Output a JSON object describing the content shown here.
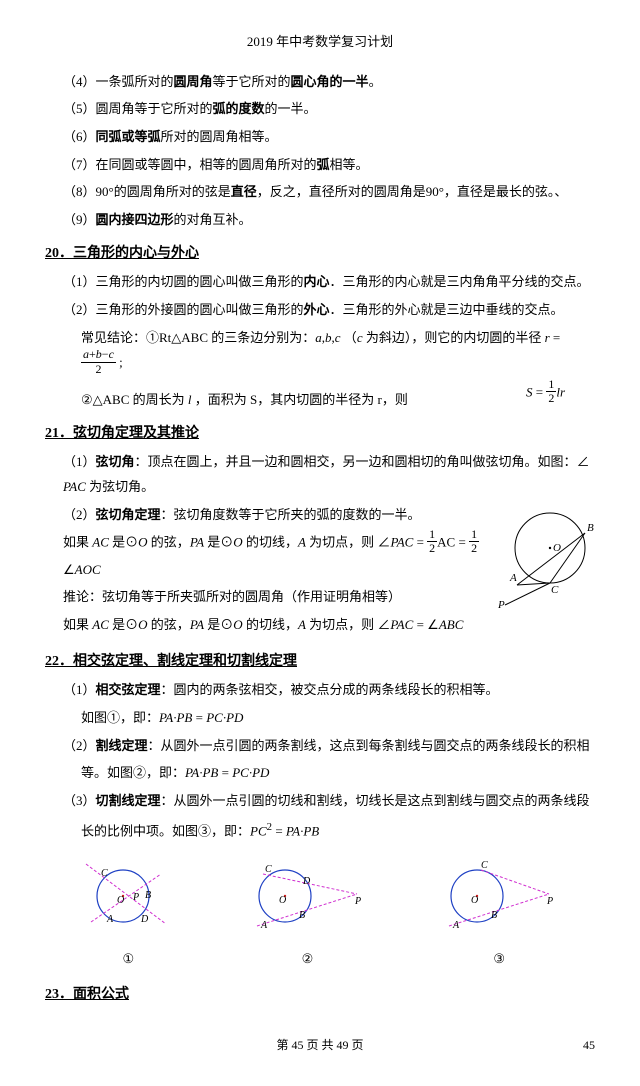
{
  "header": "2019 年中考数学复习计划",
  "p4": "（4）一条弧所对的<b>圆周角</b>等于它所对的<b>圆心角的一半</b>。",
  "p5": "（5）圆周角等于它所对的<b>弧的度数</b>的一半。",
  "p6": "（6）<b>同弧或等弧</b>所对的圆周角相等。",
  "p7": "（7）在同圆或等圆中，相等的圆周角所对的<b>弧</b>相等。",
  "p8": "（8）90°的圆周角所对的弦是<b>直径</b>，反之，直径所对的圆周角是90°，直径是最长的弦。、",
  "p9": "（9）<b>圆内接四边形</b>的对角互补。",
  "sec20": "20．三角形的内心与外心",
  "p20_1": "（1）三角形的内切圆的圆心叫做三角形的<b>内心</b>．三角形的内心就是三内角角平分线的交点。",
  "p20_2": "（2）三角形的外接圆的圆心叫做三角形的<b>外心</b>．三角形的外心就是三边中垂线的交点。",
  "p20_3a": "常见结论：①Rt△ABC 的三条边分别为：",
  "p20_3b": "（<i>c</i> 为斜边），则它的内切圆的半径",
  "p20_4": "②△ABC 的周长为 <i>l</i> ，面积为 S，其内切圆的半径为 r，则",
  "sec21": "21．弦切角定理及其推论",
  "p21_a": "（1）<b>弦切角</b>：顶点在圆上，并且一边和圆相交，另一边和圆相切的角叫做弦切角。如图：∠",
  "p21_b": "<i>PAC</i> 为弦切角。",
  "p21_2": "（2）<b>弦切角定理</b>：弦切角度数等于它所夹的弧的度数的一半。",
  "p21_2b_pre": "如果 <i>AC</i> 是⊙<i>O</i> 的弦，<i>PA</i> 是⊙<i>O</i> 的切线，<i>A</i> 为切点，则",
  "p21_3": "推论：弦切角等于所夹弧所对的圆周角（作用证明角相等）",
  "p21_4": "如果 <i>AC</i> 是⊙<i>O</i> 的弦，<i>PA</i> 是⊙<i>O</i> 的切线，<i>A</i> 为切点，则 ∠<i>PAC</i> = ∠<i>ABC</i>",
  "sec22": "22．相交弦定理、割线定理和切割线定理",
  "p22_1": "（1）<b>相交弦定理</b>：圆内的两条弦相交，被交点分成的两条线段长的积相等。",
  "p22_1b": "如图①，即：<i>PA·PB</i> = <i>PC·PD</i>",
  "p22_2": "（2）<b>割线定理</b>：从圆外一点引圆的两条割线，这点到每条割线与圆交点的两条线段长的积相",
  "p22_2b": "等。如图②，即：<i>PA·PB</i> = <i>PC·PD</i>",
  "p22_3": "（3）<b>切割线定理</b>：从圆外一点引圆的切线和割线，切线长是这点到割线与圆交点的两条线段",
  "p22_3b": "长的比例中项。如图③，即：<i>PC</i><sup>2</sup> = <i>PA·PB</i>",
  "diag_labels": {
    "d1": "①",
    "d2": "②",
    "d3": "③"
  },
  "sec23": "23．面积公式",
  "footer": "第 45 页 共 49 页",
  "pgno": "45",
  "colors": {
    "circle_stroke": "#1e40c4",
    "line_magenta": "#d030d0",
    "point_red": "#d02020"
  }
}
